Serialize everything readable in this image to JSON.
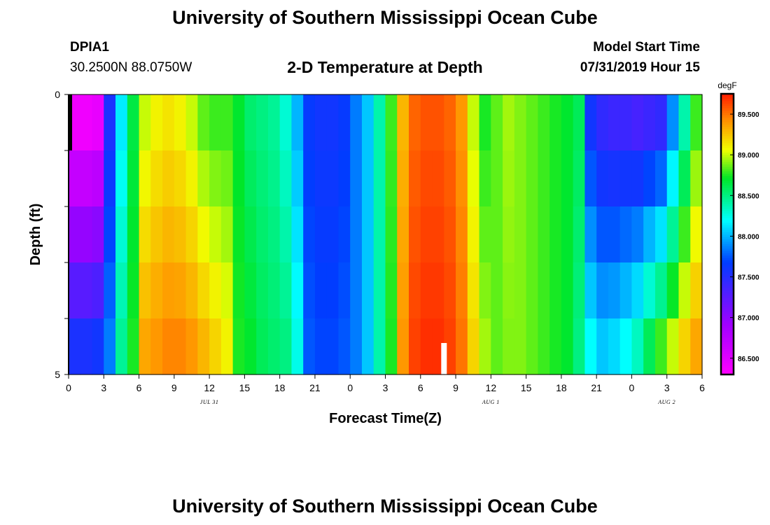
{
  "header": {
    "title": "University of Southern Mississippi Ocean Cube",
    "station_id": "DPIA1",
    "coordinates": "30.2500N 88.0750W",
    "plot_title": "2-D Temperature at Depth",
    "model_start_label": "Model Start Time",
    "model_start_value": "07/31/2019 Hour 15"
  },
  "footer": {
    "title": "University of Southern Mississippi Ocean Cube"
  },
  "chart_data": {
    "type": "heatmap",
    "title": "2-D Temperature at Depth",
    "xlabel": "Forecast Time(Z)",
    "ylabel": "Depth (ft)",
    "x_hours_from_jul31_00z": [
      0,
      1,
      2,
      3,
      4,
      5,
      6,
      7,
      8,
      9,
      10,
      11,
      12,
      13,
      14,
      15,
      16,
      17,
      18,
      19,
      20,
      21,
      22,
      23,
      24,
      25,
      26,
      27,
      28,
      29,
      30,
      31,
      32,
      33,
      34,
      35,
      36,
      37,
      38,
      39,
      40,
      41,
      42,
      43,
      44,
      45,
      46,
      47,
      48,
      49,
      50,
      51,
      52,
      53,
      54
    ],
    "xlim": [
      0,
      54
    ],
    "x_tick_labels": [
      "0",
      "3",
      "6",
      "9",
      "12",
      "15",
      "18",
      "21",
      "0",
      "3",
      "6",
      "9",
      "12",
      "15",
      "18",
      "21",
      "0",
      "3",
      "6"
    ],
    "date_labels": [
      {
        "label": "JUL 31",
        "hour": 12
      },
      {
        "label": "AUG 1",
        "hour": 36
      },
      {
        "label": "AUG 2",
        "hour": 51
      }
    ],
    "depth_levels_ft": [
      0,
      1,
      2,
      3,
      4,
      5
    ],
    "ylim": [
      0,
      5
    ],
    "y_tick_labels": [
      "0",
      "5"
    ],
    "colorbar": {
      "unit": "degF",
      "min": 86.3,
      "max": 89.75,
      "tick_values": [
        86.5,
        87.0,
        87.5,
        88.0,
        88.5,
        89.0,
        89.5
      ],
      "tick_labels": [
        "86.500",
        "87.000",
        "87.500",
        "88.000",
        "88.500",
        "89.000",
        "89.500"
      ]
    },
    "surface_values_degF": [
      86.4,
      86.4,
      86.45,
      87.55,
      88.15,
      88.65,
      89.0,
      89.1,
      89.15,
      89.1,
      89.0,
      88.85,
      88.8,
      88.8,
      88.7,
      88.55,
      88.5,
      88.45,
      88.3,
      88.0,
      87.65,
      87.6,
      87.6,
      87.65,
      87.85,
      88.05,
      88.4,
      88.8,
      89.3,
      89.55,
      89.6,
      89.6,
      89.55,
      89.4,
      89.0,
      88.75,
      88.85,
      88.95,
      88.9,
      88.85,
      88.8,
      88.75,
      88.7,
      88.6,
      87.6,
      87.45,
      87.4,
      87.4,
      87.35,
      87.4,
      87.45,
      87.9,
      88.4,
      88.8,
      89.05
    ],
    "bottom_values_degF": [
      87.55,
      87.55,
      87.6,
      87.85,
      88.45,
      88.75,
      89.35,
      89.4,
      89.45,
      89.45,
      89.4,
      89.3,
      89.2,
      89.1,
      88.75,
      88.7,
      88.6,
      88.55,
      88.5,
      88.25,
      87.75,
      87.7,
      87.7,
      87.75,
      87.85,
      88.05,
      88.4,
      88.75,
      89.4,
      89.65,
      89.7,
      89.7,
      89.65,
      89.5,
      89.2,
      88.95,
      88.85,
      88.9,
      88.9,
      88.85,
      88.8,
      88.75,
      88.7,
      88.5,
      88.2,
      88.05,
      88.1,
      88.2,
      88.35,
      88.6,
      88.8,
      89.0,
      89.2,
      89.35,
      89.55
    ],
    "marker": {
      "hour": 32,
      "depth_ft": 4.5
    }
  }
}
